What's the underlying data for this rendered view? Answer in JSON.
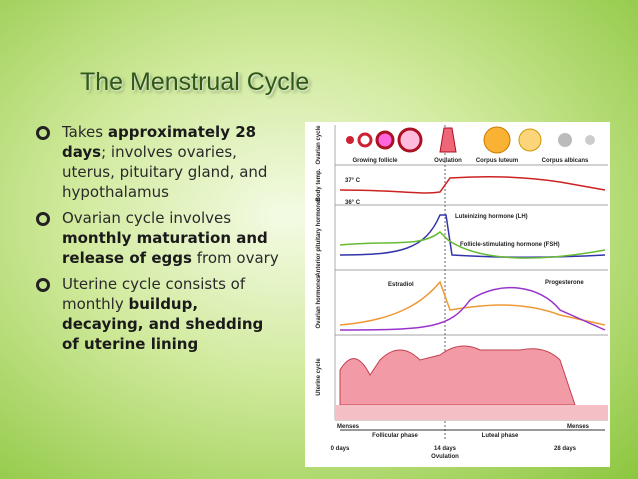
{
  "slide": {
    "title": "The Menstrual Cycle",
    "bullets": [
      {
        "runs": [
          {
            "text": "Takes ",
            "bold": false
          },
          {
            "text": "approximately 28 days",
            "bold": true
          },
          {
            "text": "; involves ovaries, uterus, pituitary gland, and hypothalamus",
            "bold": false
          }
        ]
      },
      {
        "runs": [
          {
            "text": "Ovarian cycle involves ",
            "bold": false
          },
          {
            "text": "monthly maturation and release of eggs",
            "bold": true
          },
          {
            "text": " from ovary",
            "bold": false
          }
        ]
      },
      {
        "runs": [
          {
            "text": "Uterine cycle consists of monthly ",
            "bold": false
          },
          {
            "text": "buildup, decaying, and shedding of uterine lining",
            "bold": true
          }
        ]
      }
    ]
  },
  "diagram": {
    "row_labels": [
      "Ovarian cycle",
      "Body temp.",
      "Anterior pituitary hormones",
      "Ovarian hormones",
      "Uterine cycle"
    ],
    "stages": [
      "Growing follicle",
      "Ovulation",
      "Corpus luteum",
      "Corpus albicans"
    ],
    "temps": [
      "37° C",
      "36° C"
    ],
    "hormones": [
      "Luteinizing hormone (LH)",
      "Follicle-stimulating hormone (FSH)",
      "Estradiol",
      "Progesterone"
    ],
    "phases": [
      "Menses",
      "Follicular phase",
      "Luteal phase",
      "Menses"
    ],
    "days": [
      "0 days",
      "14 days",
      "Ovulation",
      "28 days"
    ]
  }
}
